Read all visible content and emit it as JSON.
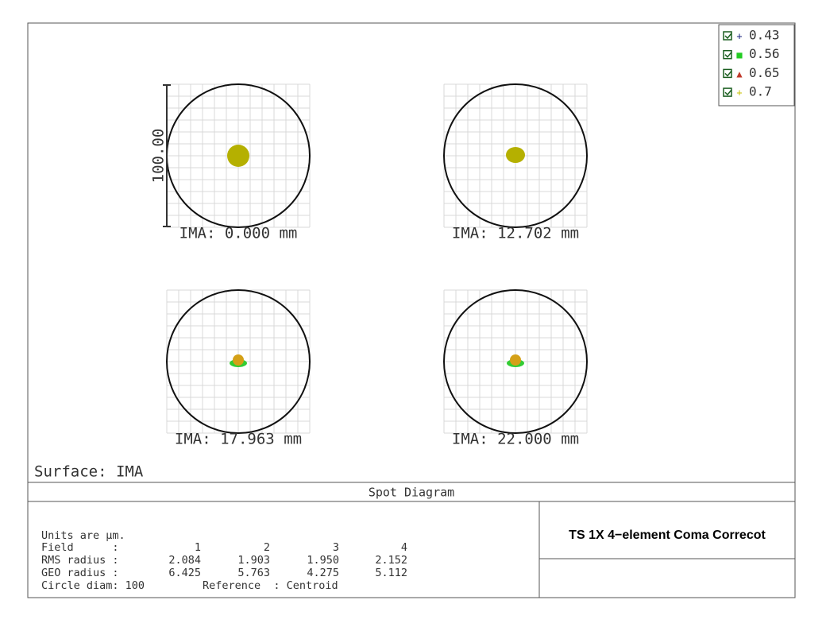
{
  "legend": [
    {
      "label": "0.43",
      "color": "#1a237e",
      "marker": "+"
    },
    {
      "label": "0.56",
      "color": "#22cc22",
      "marker": "■"
    },
    {
      "label": "0.65",
      "color": "#c0392b",
      "marker": "▲"
    },
    {
      "label": "0.7",
      "color": "#c8c000",
      "marker": "+"
    }
  ],
  "scale_label": "100.00",
  "panels": [
    {
      "label": "IMA: 0.000 mm"
    },
    {
      "label": "IMA: 12.702 mm"
    },
    {
      "label": "IMA: 17.963 mm"
    },
    {
      "label": "IMA: 22.000 mm"
    }
  ],
  "surface": "Surface: IMA",
  "title": "Spot Diagram",
  "lens_title": "TS 1X 4−element Coma Correcot",
  "table": {
    "units": "Units are µm.",
    "rows": [
      {
        "label": "Field      :",
        "values": [
          "1",
          "2",
          "3",
          "4"
        ]
      },
      {
        "label": "RMS radius :",
        "values": [
          "2.084",
          "1.903",
          "1.950",
          "2.152"
        ]
      },
      {
        "label": "GEO radius :",
        "values": [
          "6.425",
          "5.763",
          "4.275",
          "5.112"
        ]
      }
    ],
    "circle": "Circle diam: 100",
    "reference": "Reference  : Centroid"
  }
}
